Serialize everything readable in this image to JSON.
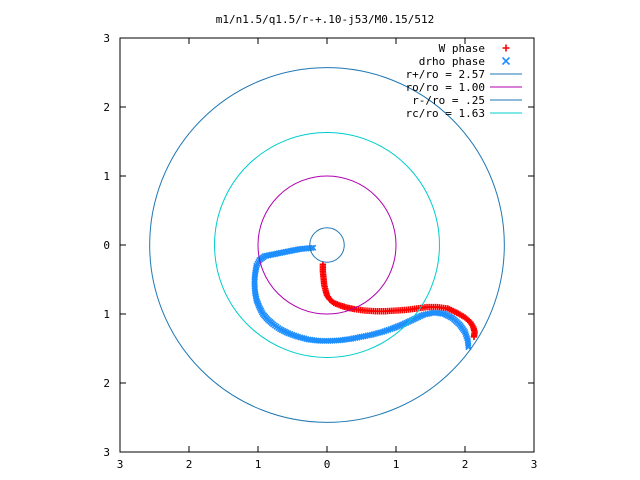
{
  "chart_data": {
    "type": "scatter",
    "title": "m1/n1.5/q1.5/r-+.10-j53/M0.15/512",
    "xlabel": "",
    "ylabel": "",
    "xlim": [
      -3,
      3
    ],
    "ylim": [
      -3,
      3
    ],
    "x_tick_values": [
      -3,
      -2,
      -1,
      0,
      1,
      2,
      3
    ],
    "x_tick_labels": [
      "3",
      "2",
      "1",
      "0",
      "1",
      "2",
      "3"
    ],
    "y_tick_values": [
      -3,
      -2,
      -1,
      0,
      1,
      2,
      3
    ],
    "y_tick_labels": [
      "3",
      "2",
      "1",
      "0",
      "1",
      "2",
      "3"
    ],
    "grid": false,
    "legend_position": "top-right",
    "series": [
      {
        "name": "W phase",
        "kind": "points",
        "marker": "plus",
        "color": "#ff0000",
        "x": [
          -0.06,
          -0.06,
          -0.05,
          -0.04,
          -0.02,
          0.0,
          0.04,
          0.1,
          0.2,
          0.3,
          0.4,
          0.55,
          0.7,
          0.85,
          1.0,
          1.15,
          1.3,
          1.45,
          1.6,
          1.75,
          1.88,
          2.0,
          2.08,
          2.12,
          2.14,
          2.13
        ],
        "y": [
          -0.28,
          -0.38,
          -0.48,
          -0.58,
          -0.66,
          -0.73,
          -0.79,
          -0.84,
          -0.88,
          -0.91,
          -0.93,
          -0.95,
          -0.96,
          -0.96,
          -0.95,
          -0.94,
          -0.92,
          -0.9,
          -0.9,
          -0.92,
          -0.98,
          -1.05,
          -1.12,
          -1.19,
          -1.26,
          -1.33
        ]
      },
      {
        "name": "drho phase",
        "kind": "points",
        "marker": "cross",
        "color": "#1f8fff",
        "x": [
          -0.2,
          -0.3,
          -0.4,
          -0.5,
          -0.6,
          -0.7,
          -0.8,
          -0.9,
          -0.98,
          -1.02,
          -1.04,
          -1.05,
          -1.05,
          -1.04,
          -1.02,
          -0.98,
          -0.93,
          -0.86,
          -0.78,
          -0.68,
          -0.56,
          -0.42,
          -0.27,
          -0.1,
          0.05,
          0.2,
          0.35,
          0.5,
          0.65,
          0.8,
          0.95,
          1.1,
          1.25,
          1.4,
          1.55,
          1.7,
          1.82,
          1.92,
          2.0,
          2.04,
          2.05
        ],
        "y": [
          -0.04,
          -0.05,
          -0.06,
          -0.08,
          -0.1,
          -0.12,
          -0.14,
          -0.16,
          -0.22,
          -0.3,
          -0.4,
          -0.5,
          -0.6,
          -0.7,
          -0.8,
          -0.9,
          -1.0,
          -1.08,
          -1.15,
          -1.22,
          -1.28,
          -1.33,
          -1.37,
          -1.39,
          -1.39,
          -1.38,
          -1.36,
          -1.33,
          -1.3,
          -1.26,
          -1.21,
          -1.15,
          -1.08,
          -1.01,
          -0.98,
          -1.0,
          -1.06,
          -1.15,
          -1.26,
          -1.38,
          -1.48
        ]
      },
      {
        "name": "r+/ro = 2.57",
        "kind": "circle",
        "radius": 2.57,
        "color": "#1f77b4"
      },
      {
        "name": "ro/ro = 1.00",
        "kind": "circle",
        "radius": 1.0,
        "color": "#b000b0"
      },
      {
        "name": "r-/ro = .25",
        "kind": "circle",
        "radius": 0.25,
        "color": "#1f77b4"
      },
      {
        "name": "rc/ro = 1.63",
        "kind": "circle",
        "radius": 1.63,
        "color": "#00cccc"
      }
    ]
  }
}
